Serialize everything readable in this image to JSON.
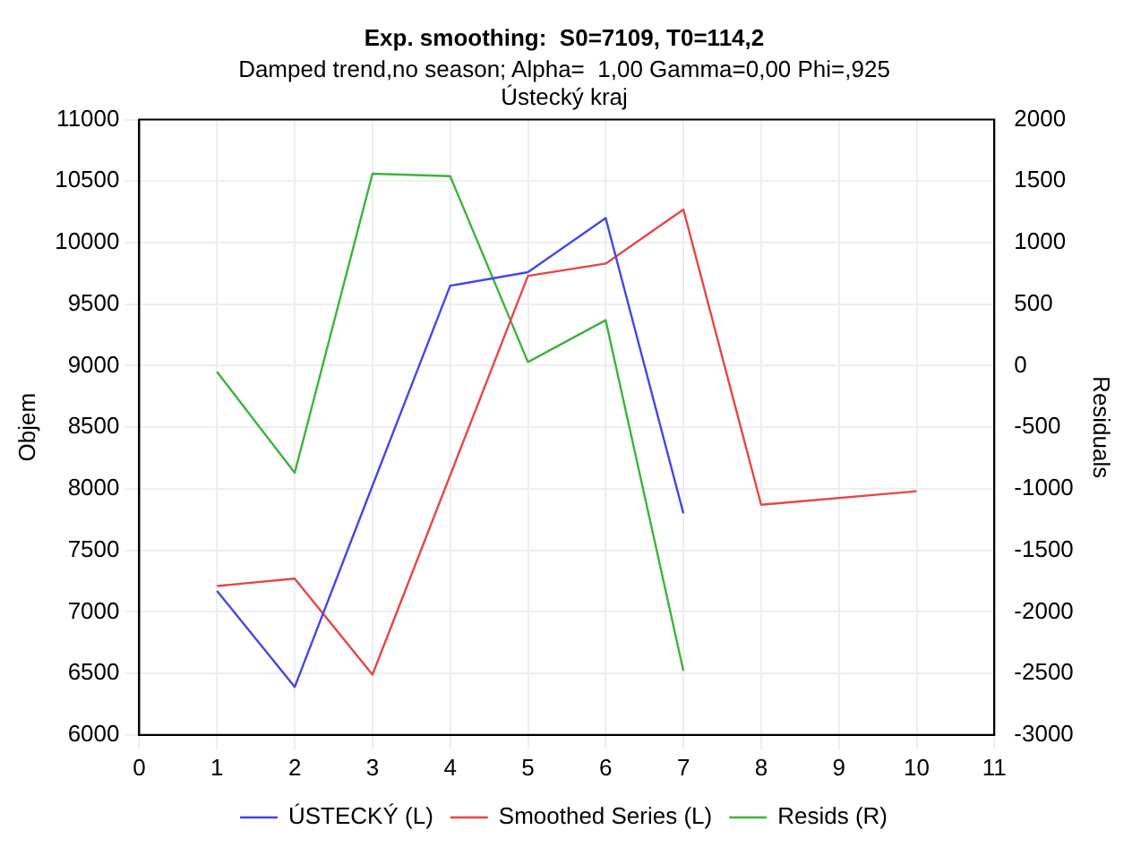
{
  "chart_data": {
    "type": "line",
    "title": "Exp. smoothing:  S0=7109, T0=114,2",
    "subtitle": "Damped trend,no season; Alpha=  1,00 Gamma=0,00 Phi=,925",
    "annotations": [
      "Ústecký kraj"
    ],
    "xlim": [
      0,
      11
    ],
    "xticks": [
      0,
      1,
      2,
      3,
      4,
      5,
      6,
      7,
      8,
      9,
      10,
      11
    ],
    "ylim": [
      6000,
      11000
    ],
    "yticks": [
      6000,
      6500,
      7000,
      7500,
      8000,
      8500,
      9000,
      9500,
      10000,
      10500,
      11000
    ],
    "y2lim": [
      -3000,
      2000
    ],
    "y2ticks": [
      -3000,
      -2500,
      -2000,
      -1500,
      -1000,
      -500,
      0,
      500,
      1000,
      1500,
      2000
    ],
    "ylabel": "Objem",
    "y2label": "Residuals",
    "grid": true,
    "legend": "bottom",
    "marker": "none",
    "line_style": "solid",
    "series": [
      {
        "name": "ÚSTECKÝ (L)",
        "color": "#4646e6",
        "x": [
          1,
          2,
          3,
          4,
          5,
          6,
          7
        ],
        "values": [
          7170,
          6390,
          8025,
          9650,
          9760,
          10200,
          7800
        ]
      },
      {
        "name": "Smoothed Series (L)",
        "color": "#e64646",
        "x": [
          1,
          2,
          3,
          4,
          5,
          6,
          7,
          8,
          10
        ],
        "values": [
          7210,
          7270,
          6490,
          8110,
          9730,
          9830,
          10270,
          7870,
          7980
        ]
      },
      {
        "name": "Resids (R)",
        "color": "#3cb43c",
        "axis": "y2",
        "x": [
          1,
          2,
          3,
          4,
          5,
          6,
          7
        ],
        "values": [
          -50,
          -870,
          1560,
          1540,
          30,
          370,
          -2480
        ]
      }
    ]
  }
}
